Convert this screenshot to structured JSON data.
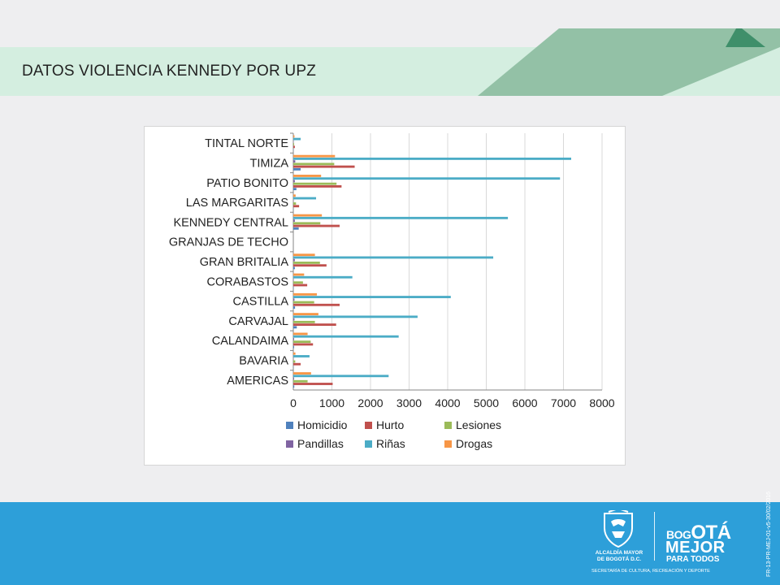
{
  "header": {
    "title": "DATOS VIOLENCIA KENNEDY POR UPZ"
  },
  "colors": {
    "header_band": "#d4eee0",
    "slant_dark": "#93c1a6",
    "slant_tab": "#3f8f6a",
    "footer": "#2d9fd9"
  },
  "chart_data": {
    "type": "bar",
    "orientation": "horizontal",
    "categories": [
      "AMERICAS",
      "BAVARIA",
      "CALANDAIMA",
      "CARVAJAL",
      "CASTILLA",
      "CORABASTOS",
      "GRAN BRITALIA",
      "GRANJAS DE TECHO",
      "KENNEDY CENTRAL",
      "LAS MARGARITAS",
      "PATIO BONITO",
      "TIMIZA",
      "TINTAL NORTE"
    ],
    "series": [
      {
        "name": "Homicidio",
        "color": "#4f81bd",
        "values": [
          25,
          5,
          20,
          90,
          45,
          10,
          40,
          0,
          140,
          5,
          80,
          190,
          5
        ]
      },
      {
        "name": "Hurto",
        "color": "#c0504d",
        "values": [
          1020,
          190,
          510,
          1110,
          1200,
          360,
          860,
          0,
          1200,
          150,
          1250,
          1590,
          40
        ]
      },
      {
        "name": "Lesiones",
        "color": "#9bbb59",
        "values": [
          370,
          50,
          450,
          560,
          540,
          250,
          690,
          0,
          700,
          70,
          1120,
          1060,
          20
        ]
      },
      {
        "name": "Pandillas",
        "color": "#8064a2",
        "values": [
          20,
          5,
          20,
          30,
          30,
          10,
          40,
          0,
          40,
          5,
          40,
          50,
          5
        ]
      },
      {
        "name": "Riñas",
        "color": "#4bacc6",
        "values": [
          2470,
          420,
          2730,
          3220,
          4080,
          1530,
          5180,
          0,
          5560,
          590,
          6910,
          7200,
          190
        ]
      },
      {
        "name": "Drogas",
        "color": "#f79646",
        "values": [
          460,
          55,
          370,
          650,
          610,
          280,
          560,
          0,
          740,
          60,
          720,
          1080,
          30
        ]
      }
    ],
    "xlim": [
      0,
      8000
    ],
    "xticks": [
      "0",
      "1000",
      "2000",
      "3000",
      "4000",
      "5000",
      "6000",
      "7000",
      "8000"
    ],
    "grid": true,
    "legend_position": "bottom"
  },
  "footer": {
    "alcaldia_line1": "ALCALDÍA MAYOR",
    "alcaldia_line2": "DE BOGOTÁ D.C.",
    "brand_line1a": "BOG",
    "brand_line1b": "OTÁ",
    "brand_line2": "MEJOR",
    "brand_line3": "PARA TODOS",
    "secretaria": "SECRETARÍA DE CULTURA, RECREACIÓN Y DEPORTE",
    "doc_code": "FR-13-PR-MEJ-01-v5-30/02/2016"
  }
}
